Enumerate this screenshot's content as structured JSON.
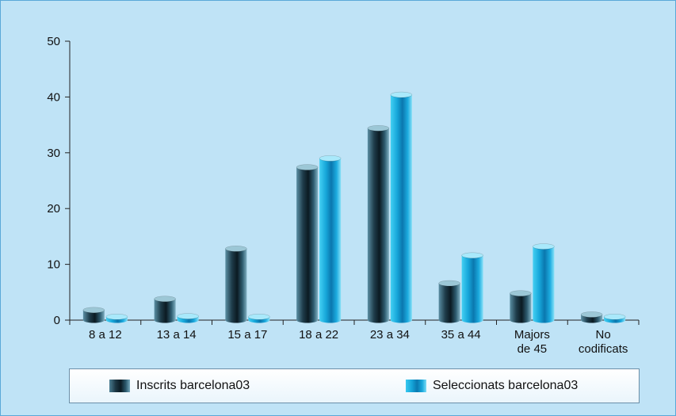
{
  "colors": {
    "background": "#bfe3f6",
    "series1": "#1c3744",
    "series2": "#15a4d8"
  },
  "chart_data": {
    "type": "bar",
    "categories": [
      "8 a 12",
      "13 a 14",
      "15 a 17",
      "18 a 22",
      "23 a 34",
      "35 a 44",
      "Majors de 45",
      "No codificats"
    ],
    "category_lines": [
      [
        "8 a 12"
      ],
      [
        "13 a 14"
      ],
      [
        "15 a 17"
      ],
      [
        "18 a 22"
      ],
      [
        "23 a 34"
      ],
      [
        "35 a 44"
      ],
      [
        "Majors",
        "de 45"
      ],
      [
        "No",
        "codificats"
      ]
    ],
    "series": [
      {
        "name": "Inscrits barcelona03",
        "values": [
          1.8,
          3.8,
          12.8,
          27.4,
          34.4,
          6.6,
          4.8,
          1.0
        ]
      },
      {
        "name": "Seleccionats barcelona03",
        "values": [
          0.6,
          0.7,
          0.6,
          29.0,
          40.4,
          11.6,
          13.2,
          0.6
        ]
      }
    ],
    "title": "",
    "xlabel": "",
    "ylabel": "",
    "ylim": [
      0,
      50
    ],
    "yticks": [
      "0",
      "10",
      "20",
      "30",
      "40",
      "50"
    ],
    "grid": false,
    "legend_position": "bottom"
  }
}
